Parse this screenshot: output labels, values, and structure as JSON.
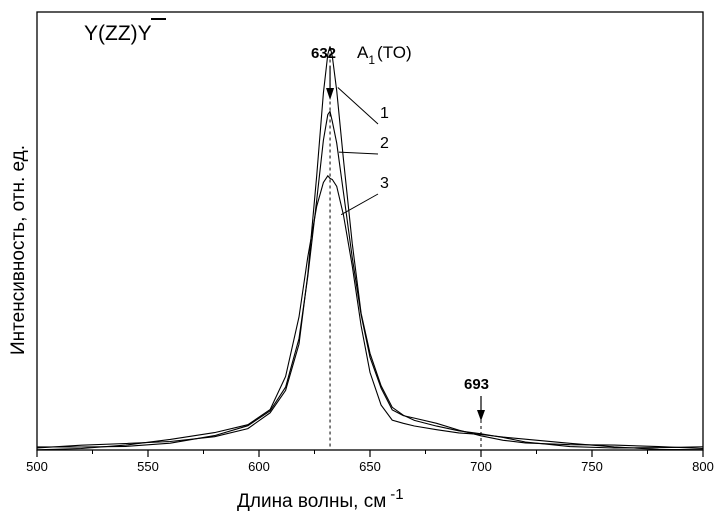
{
  "chart_data": {
    "type": "line",
    "xlabel": "Длина волны, см",
    "xlabel_exponent": "-1",
    "ylabel": "Интенсивность, отн. ед.",
    "title_prefix": "Y(ZZ)",
    "title_overbar": "Y",
    "xlim": [
      500,
      800
    ],
    "ylim": [
      0,
      1.05
    ],
    "xticks": [
      500,
      550,
      600,
      650,
      700,
      750,
      800
    ],
    "peak_main": {
      "value": "632",
      "mode": "A",
      "mode_sub": "1",
      "mode_suffix": "(TO)",
      "x": 632
    },
    "peak_secondary": {
      "value": "693",
      "x": 700
    },
    "series": [
      {
        "name": "1",
        "color": "#000000",
        "x": [
          500,
          520,
          540,
          560,
          580,
          595,
          605,
          612,
          618,
          622,
          626,
          629,
          631,
          632,
          633,
          635,
          638,
          642,
          646,
          650,
          655,
          660,
          665,
          670,
          680,
          690,
          700,
          710,
          720,
          740,
          760,
          780,
          800
        ],
        "y": [
          0.005,
          0.008,
          0.012,
          0.02,
          0.035,
          0.055,
          0.09,
          0.14,
          0.25,
          0.42,
          0.66,
          0.86,
          0.95,
          0.965,
          0.94,
          0.86,
          0.7,
          0.5,
          0.33,
          0.23,
          0.15,
          0.1,
          0.085,
          0.075,
          0.06,
          0.045,
          0.035,
          0.027,
          0.02,
          0.012,
          0.008,
          0.005,
          0.004
        ]
      },
      {
        "name": "2",
        "color": "#000000",
        "x": [
          500,
          520,
          540,
          560,
          580,
          595,
          605,
          612,
          618,
          622,
          626,
          629,
          631,
          632,
          633,
          635,
          638,
          642,
          646,
          650,
          655,
          660,
          665,
          670,
          680,
          690,
          700,
          710,
          720,
          740,
          760,
          780,
          800
        ],
        "y": [
          0.004,
          0.007,
          0.012,
          0.02,
          0.035,
          0.055,
          0.09,
          0.15,
          0.27,
          0.42,
          0.6,
          0.74,
          0.8,
          0.81,
          0.79,
          0.74,
          0.62,
          0.46,
          0.32,
          0.22,
          0.15,
          0.1,
          0.085,
          0.075,
          0.06,
          0.045,
          0.035,
          0.027,
          0.02,
          0.012,
          0.008,
          0.005,
          0.004
        ]
      },
      {
        "name": "3",
        "color": "#000000",
        "x": [
          500,
          520,
          540,
          560,
          580,
          595,
          605,
          612,
          618,
          622,
          626,
          629,
          631,
          632,
          633,
          635,
          638,
          642,
          646,
          650,
          655,
          660,
          665,
          670,
          680,
          690,
          700,
          710,
          720,
          740,
          760,
          780,
          800
        ],
        "y": [
          0.004,
          0.007,
          0.012,
          0.022,
          0.038,
          0.06,
          0.1,
          0.18,
          0.32,
          0.46,
          0.58,
          0.64,
          0.66,
          0.655,
          0.65,
          0.63,
          0.56,
          0.44,
          0.3,
          0.19,
          0.11,
          0.07,
          0.06,
          0.055,
          0.05,
          0.045,
          0.04,
          0.03,
          0.022,
          0.013,
          0.008,
          0.005,
          0.004
        ]
      }
    ]
  }
}
